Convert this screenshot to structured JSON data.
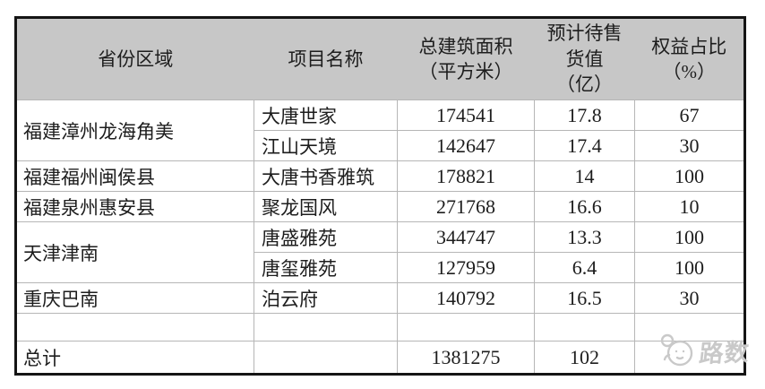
{
  "colors": {
    "header_bg": "#c7c7c7",
    "grid": "#b6b6b6",
    "border": "#151515",
    "text": "#1d1d1d",
    "watermark": "#c9c9c9"
  },
  "table": {
    "columns": [
      {
        "label": "省份区域"
      },
      {
        "label": "项目名称"
      },
      {
        "label": "总建筑面积\n（平方米）"
      },
      {
        "label": "预计待售\n货值\n（亿）"
      },
      {
        "label": "权益占比\n（%）"
      }
    ],
    "groups": [
      {
        "region": "福建漳州龙海角美",
        "projects": [
          {
            "name": "大唐世家",
            "area": "174541",
            "value": "17.8",
            "equity": "67"
          },
          {
            "name": "江山天境",
            "area": "142647",
            "value": "17.4",
            "equity": "30"
          }
        ]
      },
      {
        "region": "福建福州闽侯县",
        "projects": [
          {
            "name": "大唐书香雅筑",
            "area": "178821",
            "value": "14",
            "equity": "100"
          }
        ]
      },
      {
        "region": "福建泉州惠安县",
        "projects": [
          {
            "name": "聚龙国风",
            "area": "271768",
            "value": "16.6",
            "equity": "10"
          }
        ]
      },
      {
        "region": "天津津南",
        "projects": [
          {
            "name": "唐盛雅苑",
            "area": "344747",
            "value": "13.3",
            "equity": "100"
          },
          {
            "name": "唐玺雅苑",
            "area": "127959",
            "value": "6.4",
            "equity": "100"
          }
        ]
      },
      {
        "region": "重庆巴南",
        "projects": [
          {
            "name": "泊云府",
            "area": "140792",
            "value": "16.5",
            "equity": "30"
          }
        ]
      }
    ],
    "total_row": {
      "label": "总计",
      "area": "1381275",
      "value": "102",
      "equity": ""
    }
  },
  "watermark": {
    "text": "路数",
    "icon": "mouse-logo-icon"
  }
}
